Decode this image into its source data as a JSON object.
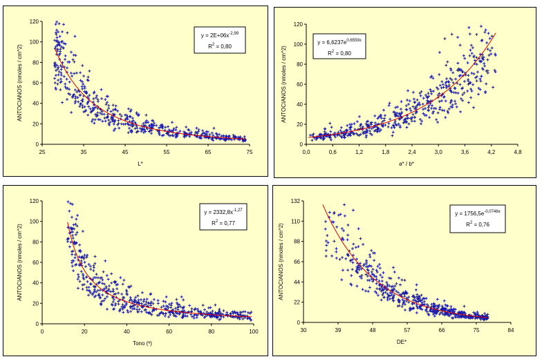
{
  "chart_data": [
    {
      "type": "scatter",
      "xlabel": "L*",
      "ylabel": "ANTOCIANOS (nmoles / cm^2)",
      "xlim": [
        25,
        75
      ],
      "ylim": [
        0,
        120
      ],
      "xticks": [
        "25",
        "35",
        "45",
        "55",
        "65",
        "75"
      ],
      "yticks": [
        "0",
        "20",
        "40",
        "60",
        "80",
        "100",
        "120"
      ],
      "equation": "y = 2E+06x^-2,99",
      "equation_base": "y = 2E+06x",
      "equation_exp": "-2,99",
      "r2_label": "R",
      "r2_sup": "2",
      "r2_value": " = 0,80",
      "fit": {
        "form": "power",
        "a": 2000000,
        "b": -2.99
      },
      "x_range": [
        28,
        74
      ],
      "n_points": 520,
      "noise": 0.28,
      "seed": 11,
      "grid": false
    },
    {
      "type": "scatter",
      "xlabel": "a* / b*",
      "ylabel": "ANTOCIANOS (nmoles / cm^2)",
      "xlim": [
        0,
        4.8
      ],
      "ylim": [
        0,
        120
      ],
      "xticks": [
        "0,0",
        "0,6",
        "1,2",
        "1,8",
        "2,4",
        "3,0",
        "3,6",
        "4,2",
        "4,8"
      ],
      "yticks": [
        "0",
        "20",
        "40",
        "60",
        "80",
        "100",
        "120"
      ],
      "equation": "y = 6,6237e^0,6559x",
      "equation_base": "y = 6,6237e",
      "equation_exp": "0,6559x",
      "r2_label": "R",
      "r2_sup": "2",
      "r2_value": " = 0,80",
      "fit": {
        "form": "exp",
        "a": 6.6237,
        "b": 0.6559
      },
      "x_range": [
        0.05,
        4.3
      ],
      "n_points": 520,
      "noise": 0.28,
      "seed": 23,
      "grid": false
    },
    {
      "type": "scatter",
      "xlabel": "Tono (º)",
      "ylabel": "ANTOCIANOS (nmoles / cm^2)",
      "xlim": [
        0,
        100
      ],
      "ylim": [
        0,
        120
      ],
      "xticks": [
        "0",
        "20",
        "40",
        "60",
        "80",
        "100"
      ],
      "yticks": [
        "0",
        "20",
        "40",
        "60",
        "80",
        "100",
        "120"
      ],
      "equation": "y = 2332,8x^-1,27",
      "equation_base": "y = 2332,8x",
      "equation_exp": "-1,27",
      "r2_label": "R",
      "r2_sup": "2",
      "r2_value": " = 0,77",
      "fit": {
        "form": "power",
        "a": 2332.8,
        "b": -1.27
      },
      "x_range": [
        12,
        99
      ],
      "n_points": 520,
      "noise": 0.3,
      "seed": 37,
      "grid": false
    },
    {
      "type": "scatter",
      "xlabel": "DE*",
      "ylabel": "ANTOCIANOS (nmoles / cm^2)",
      "xlim": [
        30,
        84
      ],
      "ylim": [
        0,
        132
      ],
      "xticks": [
        "30",
        "39",
        "48",
        "57",
        "66",
        "75",
        "84"
      ],
      "yticks": [
        "0",
        "22",
        "44",
        "66",
        "88",
        "110",
        "132"
      ],
      "equation": "y = 1756,5e^-0,0748x",
      "equation_base": "y = 1756,5e",
      "equation_exp": "-0,0748x",
      "r2_label": "R",
      "r2_sup": "2",
      "r2_value": " = 0,76",
      "fit": {
        "form": "exp",
        "a": 1756.5,
        "b": -0.0748
      },
      "x_range": [
        35,
        78
      ],
      "n_points": 520,
      "noise": 0.28,
      "seed": 53,
      "grid": false
    }
  ]
}
